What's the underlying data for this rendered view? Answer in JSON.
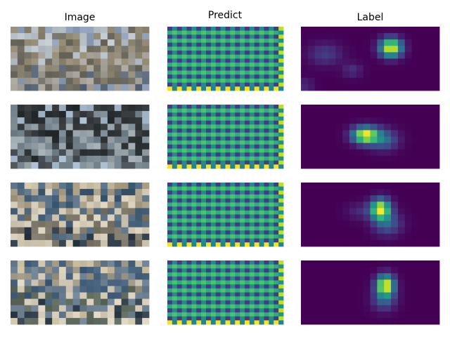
{
  "chart_data": {
    "type": "heatmap",
    "columns": [
      {
        "title": "Image",
        "kind": "rgb",
        "grid": [
          20,
          10
        ]
      },
      {
        "title": "Predict",
        "kind": "heatmap",
        "grid": [
          24,
          16
        ],
        "colormap": "viridis"
      },
      {
        "title": "Label",
        "kind": "heatmap",
        "grid": [
          20,
          10
        ],
        "colormap": "viridis"
      }
    ],
    "rows": [
      {
        "image_palette": [
          "#8a9bb3",
          "#b9c1c9",
          "#8f8672",
          "#6f6d62",
          "#a6a29a",
          "#5e6b7c"
        ],
        "label_peaks": [
          {
            "x": 13.0,
            "y": 3.3,
            "amp": 1.0,
            "sx": 1.1,
            "sy": 1.0
          },
          {
            "x": 3.5,
            "y": 4.3,
            "amp": 0.18,
            "sx": 1.7,
            "sy": 1.2
          },
          {
            "x": 7.4,
            "y": 6.8,
            "amp": 0.14,
            "sx": 1.0,
            "sy": 0.8
          },
          {
            "x": 0.7,
            "y": 9.2,
            "amp": 0.12,
            "sx": 0.8,
            "sy": 0.8
          }
        ]
      },
      {
        "image_palette": [
          "#a7b9cc",
          "#3b3e40",
          "#2d3235",
          "#77858e",
          "#9aa6ab",
          "#4a5258"
        ],
        "label_peaks": [
          {
            "x": 9.3,
            "y": 4.8,
            "amp": 1.0,
            "sx": 1.3,
            "sy": 0.9
          },
          {
            "x": 12.0,
            "y": 5.5,
            "amp": 0.35,
            "sx": 1.4,
            "sy": 1.1
          }
        ]
      },
      {
        "image_palette": [
          "#c9bfa6",
          "#a69a83",
          "#3f5a73",
          "#566d82",
          "#d3cbb8",
          "#7a7566",
          "#2e3b46"
        ],
        "label_peaks": [
          {
            "x": 11.5,
            "y": 4.2,
            "amp": 1.0,
            "sx": 1.0,
            "sy": 1.1
          },
          {
            "x": 12.5,
            "y": 6.5,
            "amp": 0.3,
            "sx": 1.4,
            "sy": 1.2
          },
          {
            "x": 8.5,
            "y": 4.5,
            "amp": 0.12,
            "sx": 1.3,
            "sy": 0.9
          }
        ]
      },
      {
        "image_palette": [
          "#cbbfa2",
          "#9e9684",
          "#45607a",
          "#6a7e90",
          "#d8cfbd",
          "#5f6a5e",
          "#2f3d49"
        ],
        "label_peaks": [
          {
            "x": 12.2,
            "y": 3.9,
            "amp": 1.0,
            "sx": 0.9,
            "sy": 1.1
          },
          {
            "x": 12.0,
            "y": 6.2,
            "amp": 0.28,
            "sx": 1.2,
            "sy": 1.2
          }
        ]
      }
    ]
  }
}
